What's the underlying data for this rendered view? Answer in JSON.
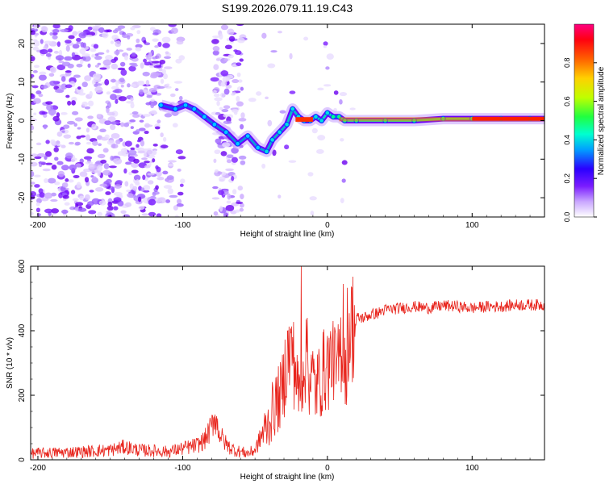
{
  "chart_data": [
    {
      "type": "heatmap",
      "title": "S199.2026.079.11.19.C43",
      "xlabel": "Height of straight line (km)",
      "ylabel": "Frequency (Hz)",
      "xlim": [
        -205,
        150
      ],
      "ylim": [
        -25,
        25
      ],
      "xticks": [
        -200,
        -100,
        0,
        100
      ],
      "yticks": [
        -20,
        -10,
        0,
        10,
        20
      ],
      "colorbar": {
        "label": "Normalized spectral amplitude",
        "range": [
          0,
          1
        ],
        "ticks": [
          "0.0",
          "0.2",
          "0.4",
          "0.6",
          "0.8"
        ],
        "stops": [
          "#ffffff",
          "#a96bff",
          "#6a00ff",
          "#0000ff",
          "#00c8ff",
          "#00ff80",
          "#8cff00",
          "#ffe000",
          "#ff8000",
          "#ff0000",
          "#ff0070"
        ]
      },
      "ridge_track": {
        "x": [
          -115,
          -105,
          -98,
          -92,
          -85,
          -78,
          -70,
          -62,
          -55,
          -48,
          -42,
          -38,
          -33,
          -28,
          -24,
          -20,
          -16,
          -12,
          -8,
          -4,
          0,
          4,
          8,
          12,
          20,
          40,
          60,
          80,
          100,
          120,
          140,
          150
        ],
        "y": [
          4,
          3,
          4,
          3,
          1,
          -1,
          -3,
          -6,
          -4,
          -7,
          -8,
          -5,
          -3,
          -1,
          3,
          1,
          0,
          0,
          1,
          0,
          2,
          1,
          1,
          0,
          0,
          0,
          0,
          0.5,
          0.5,
          0.5,
          0.5,
          0.5
        ]
      }
    },
    {
      "type": "line",
      "xlabel": "Height of straight line (km)",
      "ylabel": "SNR (10 * v/v)",
      "xlim": [
        -205,
        150
      ],
      "ylim": [
        0,
        600
      ],
      "xticks": [
        -200,
        -100,
        0,
        100
      ],
      "yticks": [
        0,
        200,
        400,
        600
      ],
      "line_color": "#e8241c",
      "series": [
        {
          "name": "SNR",
          "x": [
            -205,
            -190,
            -170,
            -150,
            -140,
            -130,
            -120,
            -110,
            -100,
            -95,
            -90,
            -85,
            -80,
            -78,
            -75,
            -72,
            -68,
            -64,
            -60,
            -55,
            -50,
            -45,
            -42,
            -40,
            -38,
            -35,
            -32,
            -30,
            -28,
            -25,
            -22,
            -20,
            -18,
            -16,
            -14,
            -12,
            -10,
            -8,
            -6,
            -4,
            -2,
            0,
            2,
            4,
            6,
            8,
            10,
            12,
            14,
            16,
            18,
            20,
            25,
            30,
            35,
            40,
            50,
            60,
            70,
            80,
            90,
            100,
            110,
            120,
            130,
            140,
            150
          ],
          "y": [
            20,
            22,
            25,
            30,
            40,
            30,
            28,
            25,
            35,
            40,
            45,
            60,
            100,
            140,
            90,
            60,
            40,
            30,
            25,
            20,
            30,
            80,
            100,
            120,
            150,
            180,
            200,
            250,
            320,
            330,
            280,
            200,
            240,
            330,
            280,
            260,
            250,
            220,
            240,
            260,
            280,
            290,
            300,
            350,
            260,
            300,
            380,
            300,
            390,
            410,
            420,
            440,
            440,
            450,
            455,
            465,
            470,
            475,
            470,
            478,
            475,
            470,
            475,
            475,
            480,
            480,
            480
          ]
        }
      ],
      "spikes": [
        {
          "x": -18,
          "y": 600
        },
        {
          "x": -24,
          "y": 380
        },
        {
          "x": -14,
          "y": 440
        },
        {
          "x": 11,
          "y": 545
        },
        {
          "x": 4,
          "y": 430
        },
        {
          "x": 13,
          "y": 170
        }
      ]
    }
  ]
}
